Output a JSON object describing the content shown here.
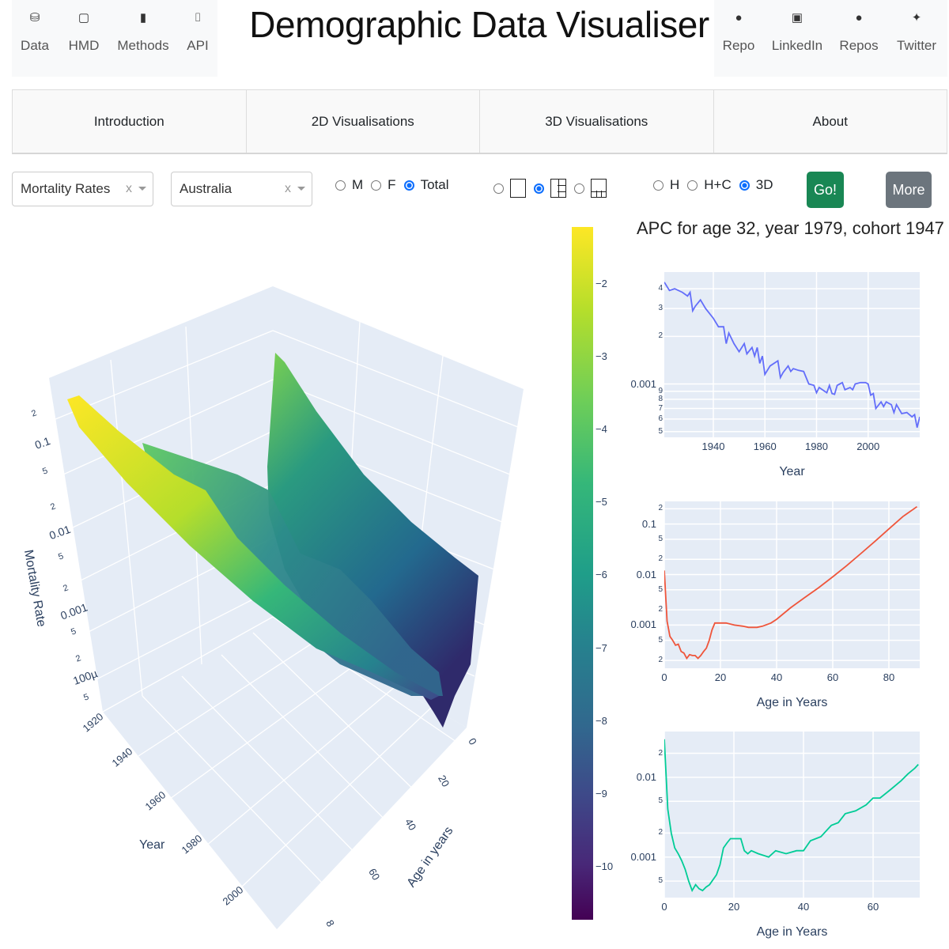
{
  "left_nav": [
    {
      "label": "Data",
      "icon": "database-icon"
    },
    {
      "label": "HMD",
      "icon": "square-icon"
    },
    {
      "label": "Methods",
      "icon": "book-icon"
    },
    {
      "label": "API",
      "icon": "code-file-icon"
    }
  ],
  "title": "Demographic Data Visualiser",
  "right_nav": [
    {
      "label": "Repo",
      "icon": "github-icon"
    },
    {
      "label": "LinkedIn",
      "icon": "linkedin-icon"
    },
    {
      "label": "Repos",
      "icon": "github-icon"
    },
    {
      "label": "Twitter",
      "icon": "twitter-icon"
    }
  ],
  "tabs": [
    "Introduction",
    "2D Visualisations",
    "3D Visualisations",
    "About"
  ],
  "controls": {
    "measure": {
      "value": "Mortality Rates",
      "clear": "x"
    },
    "country": {
      "value": "Australia",
      "clear": "x"
    },
    "sex": {
      "options": [
        "M",
        "F",
        "Total"
      ],
      "selected": "Total"
    },
    "layout": {
      "options": [
        "single",
        "split-right",
        "split-bottom"
      ],
      "selected": "split-right"
    },
    "plot_type": {
      "options": [
        "H",
        "H+C",
        "3D"
      ],
      "selected": "3D"
    },
    "go": "Go!",
    "more": "More",
    "go_color": "#198754",
    "more_color": "#6c757d"
  },
  "surface": {
    "z_title": "Mortality Rate",
    "y_title": "Year",
    "x_title": "Age in years",
    "z_ticks": [
      "2",
      "0.1",
      "5",
      "2",
      "0.01",
      "5",
      "2",
      "0.001",
      "5",
      "2",
      "100µ",
      "5"
    ],
    "year_ticks": [
      "1920",
      "1940",
      "1960",
      "1980",
      "2000"
    ],
    "age_ticks": [
      "0",
      "20",
      "40",
      "60",
      "8"
    ],
    "colorscale": "viridis",
    "colorbar_ticks": [
      "−2",
      "−3",
      "−4",
      "−5",
      "−6",
      "−7",
      "−8",
      "−9",
      "−10"
    ]
  },
  "apc_title": "APC for age 32, year 1979, cohort 1947",
  "chart_data": [
    {
      "type": "line",
      "color": "#636efa",
      "xlabel": "Year",
      "ylabel": "",
      "yscale": "log",
      "xlim": [
        1921,
        2020
      ],
      "ylim": [
        0.00046,
        0.0051
      ],
      "x_ticks": [
        {
          "v": 1940,
          "t": "1940"
        },
        {
          "v": 1960,
          "t": "1960"
        },
        {
          "v": 1980,
          "t": "1980"
        },
        {
          "v": 2000,
          "t": "2000"
        }
      ],
      "y_ticks": [
        {
          "v": 0.004,
          "t": "4"
        },
        {
          "v": 0.003,
          "t": "3"
        },
        {
          "v": 0.002,
          "t": "2"
        },
        {
          "v": 0.001,
          "t": "0.001"
        },
        {
          "v": 0.0009,
          "t": "9"
        },
        {
          "v": 0.0008,
          "t": "8"
        },
        {
          "v": 0.0007,
          "t": "7"
        },
        {
          "v": 0.0006,
          "t": "6"
        },
        {
          "v": 0.0005,
          "t": "5"
        }
      ],
      "x": [
        1921,
        1923,
        1925,
        1928,
        1930,
        1931,
        1932,
        1933,
        1935,
        1937,
        1940,
        1942,
        1944,
        1945,
        1946,
        1948,
        1950,
        1952,
        1953,
        1955,
        1956,
        1957,
        1958,
        1959,
        1960,
        1962,
        1965,
        1966,
        1967,
        1969,
        1970,
        1971,
        1973,
        1975,
        1977,
        1979,
        1980,
        1981,
        1984,
        1985,
        1986,
        1987,
        1988,
        1990,
        1991,
        1993,
        1994,
        1995,
        1997,
        1999,
        2000,
        2001,
        2002,
        2003,
        2005,
        2006,
        2007,
        2009,
        2010,
        2011,
        2013,
        2015,
        2017,
        2018,
        2019,
        2020
      ],
      "y": [
        0.0044,
        0.0039,
        0.004,
        0.0038,
        0.0036,
        0.0038,
        0.0029,
        0.0031,
        0.0034,
        0.003,
        0.0026,
        0.0023,
        0.0023,
        0.0018,
        0.0021,
        0.0018,
        0.0016,
        0.0018,
        0.00155,
        0.0017,
        0.0015,
        0.0017,
        0.00135,
        0.0015,
        0.00115,
        0.0013,
        0.0014,
        0.0011,
        0.00118,
        0.0013,
        0.0012,
        0.00125,
        0.00122,
        0.0012,
        0.001,
        0.00098,
        0.00088,
        0.00095,
        0.00088,
        0.00098,
        0.00087,
        0.00086,
        0.00098,
        0.00102,
        0.00092,
        0.00095,
        0.00092,
        0.001,
        0.00102,
        0.00102,
        0.001,
        0.00085,
        0.00087,
        0.0007,
        0.00077,
        0.00072,
        0.00077,
        0.00074,
        0.00066,
        0.00074,
        0.00065,
        0.00066,
        0.00062,
        0.00064,
        0.00053,
        0.00062
      ]
    },
    {
      "type": "line",
      "color": "#ef553b",
      "xlabel": "Age in Years",
      "ylabel": "",
      "yscale": "log",
      "xlim": [
        0,
        91
      ],
      "ylim": [
        0.00014,
        0.28
      ],
      "x_ticks": [
        {
          "v": 0,
          "t": "0"
        },
        {
          "v": 20,
          "t": "20"
        },
        {
          "v": 40,
          "t": "40"
        },
        {
          "v": 60,
          "t": "60"
        },
        {
          "v": 80,
          "t": "80"
        }
      ],
      "y_ticks": [
        {
          "v": 0.2,
          "t": "2"
        },
        {
          "v": 0.1,
          "t": "0.1"
        },
        {
          "v": 0.05,
          "t": "5"
        },
        {
          "v": 0.02,
          "t": "2"
        },
        {
          "v": 0.01,
          "t": "0.01"
        },
        {
          "v": 0.005,
          "t": "5"
        },
        {
          "v": 0.002,
          "t": "2"
        },
        {
          "v": 0.001,
          "t": "0.001"
        },
        {
          "v": 0.0005,
          "t": "5"
        },
        {
          "v": 0.0002,
          "t": "2"
        }
      ],
      "x": [
        0,
        1,
        2,
        3,
        4,
        5,
        6,
        7,
        8,
        9,
        10,
        11,
        12,
        13,
        14,
        15,
        16,
        17,
        18,
        19,
        20,
        22,
        25,
        28,
        30,
        33,
        35,
        38,
        40,
        45,
        50,
        55,
        60,
        65,
        70,
        75,
        80,
        85,
        90
      ],
      "y": [
        0.012,
        0.0012,
        0.0006,
        0.0005,
        0.0004,
        0.00042,
        0.0003,
        0.00028,
        0.00022,
        0.00026,
        0.00025,
        0.00025,
        0.00022,
        0.00025,
        0.0003,
        0.00035,
        0.0005,
        0.0008,
        0.0011,
        0.0011,
        0.0011,
        0.0011,
        0.001,
        0.00095,
        0.0009,
        0.0009,
        0.00095,
        0.0011,
        0.0013,
        0.0022,
        0.0035,
        0.0055,
        0.009,
        0.015,
        0.026,
        0.045,
        0.08,
        0.14,
        0.22
      ]
    },
    {
      "type": "line",
      "color": "#00cc96",
      "xlabel": "Age in Years",
      "ylabel": "",
      "yscale": "log",
      "xlim": [
        0,
        73.4
      ],
      "ylim": [
        0.00031,
        0.0375
      ],
      "x_ticks": [
        {
          "v": 0,
          "t": "0"
        },
        {
          "v": 20,
          "t": "20"
        },
        {
          "v": 40,
          "t": "40"
        },
        {
          "v": 60,
          "t": "60"
        }
      ],
      "y_ticks": [
        {
          "v": 0.02,
          "t": "2"
        },
        {
          "v": 0.01,
          "t": "0.01"
        },
        {
          "v": 0.005,
          "t": "5"
        },
        {
          "v": 0.002,
          "t": "2"
        },
        {
          "v": 0.001,
          "t": "0.001"
        },
        {
          "v": 0.0005,
          "t": "5"
        }
      ],
      "x": [
        0,
        1,
        2,
        3,
        4,
        5,
        6,
        7,
        8,
        9,
        10,
        11,
        12,
        13,
        15,
        16,
        17,
        18,
        19,
        20,
        22,
        23,
        24,
        25,
        27,
        30,
        32,
        35,
        38,
        40,
        42,
        45,
        48,
        50,
        52,
        55,
        58,
        60,
        62,
        65,
        68,
        70,
        72,
        73
      ],
      "y": [
        0.03,
        0.004,
        0.002,
        0.0013,
        0.0011,
        0.0009,
        0.0007,
        0.0005,
        0.00038,
        0.00045,
        0.0004,
        0.00038,
        0.00042,
        0.00045,
        0.0006,
        0.0008,
        0.0013,
        0.0015,
        0.0017,
        0.0017,
        0.0017,
        0.0012,
        0.0011,
        0.0012,
        0.0011,
        0.001,
        0.0012,
        0.0011,
        0.0012,
        0.0012,
        0.0016,
        0.0018,
        0.0025,
        0.0027,
        0.0035,
        0.0038,
        0.0045,
        0.0055,
        0.0055,
        0.007,
        0.009,
        0.011,
        0.013,
        0.0145
      ]
    }
  ]
}
